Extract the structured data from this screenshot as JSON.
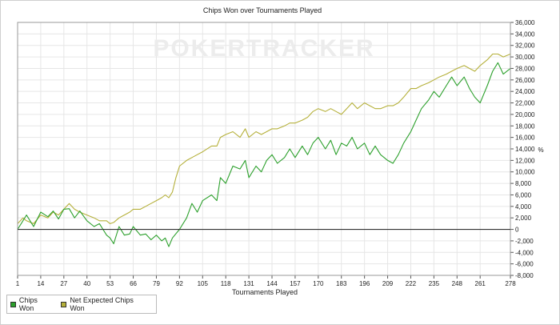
{
  "watermark": "POKERTRACKER",
  "colors": {
    "chips_won": "#2ca02c",
    "net_expected": "#b5b03a",
    "zero_line": "#333333"
  },
  "chart_data": {
    "type": "line",
    "title": "Chips Won over Tournaments Played",
    "xlabel": "Tournaments Played",
    "ylabel": "",
    "y_unit_label": "%",
    "xlim": [
      1,
      278
    ],
    "ylim": [
      -8000,
      36000
    ],
    "grid": true,
    "legend_placement": "bottom-left",
    "x_ticks": [
      1,
      14,
      27,
      40,
      53,
      66,
      79,
      92,
      105,
      118,
      131,
      144,
      157,
      170,
      183,
      196,
      209,
      222,
      235,
      248,
      261,
      278
    ],
    "y_ticks": [
      -8000,
      -6000,
      -4000,
      -2000,
      0,
      2000,
      4000,
      6000,
      8000,
      10000,
      12000,
      14000,
      16000,
      18000,
      20000,
      22000,
      24000,
      26000,
      28000,
      30000,
      32000,
      34000,
      36000
    ],
    "y_tick_labels": [
      "-8,000",
      "-6,000",
      "-4,000",
      "-2,000",
      "0",
      "2,000",
      "4,000",
      "6,000",
      "8,000",
      "10,000",
      "12,000",
      "14,000",
      "16,000",
      "18,000",
      "20,000",
      "22,000",
      "24,000",
      "26,000",
      "28,000",
      "30,000",
      "32,000",
      "34,000",
      "36,000"
    ],
    "series": [
      {
        "name": "Chips Won",
        "points": [
          [
            1,
            0
          ],
          [
            4,
            1500
          ],
          [
            6,
            2500
          ],
          [
            10,
            500
          ],
          [
            14,
            3000
          ],
          [
            18,
            2200
          ],
          [
            21,
            3200
          ],
          [
            24,
            1800
          ],
          [
            27,
            3500
          ],
          [
            30,
            3600
          ],
          [
            33,
            2000
          ],
          [
            36,
            3200
          ],
          [
            40,
            1500
          ],
          [
            44,
            500
          ],
          [
            47,
            1000
          ],
          [
            51,
            -1000
          ],
          [
            53,
            -1500
          ],
          [
            55,
            -2500
          ],
          [
            58,
            500
          ],
          [
            61,
            -1000
          ],
          [
            64,
            -800
          ],
          [
            66,
            500
          ],
          [
            70,
            -1000
          ],
          [
            73,
            -800
          ],
          [
            76,
            -1800
          ],
          [
            79,
            -1000
          ],
          [
            82,
            -2000
          ],
          [
            84,
            -1500
          ],
          [
            86,
            -3000
          ],
          [
            88,
            -1500
          ],
          [
            92,
            0
          ],
          [
            96,
            2000
          ],
          [
            99,
            4500
          ],
          [
            102,
            3000
          ],
          [
            105,
            5000
          ],
          [
            110,
            6000
          ],
          [
            113,
            5000
          ],
          [
            115,
            9000
          ],
          [
            118,
            8000
          ],
          [
            122,
            11000
          ],
          [
            126,
            10500
          ],
          [
            129,
            12000
          ],
          [
            131,
            9000
          ],
          [
            135,
            11000
          ],
          [
            138,
            10000
          ],
          [
            141,
            12000
          ],
          [
            144,
            13000
          ],
          [
            147,
            11500
          ],
          [
            151,
            12500
          ],
          [
            154,
            14000
          ],
          [
            157,
            12500
          ],
          [
            161,
            14500
          ],
          [
            164,
            13000
          ],
          [
            167,
            15000
          ],
          [
            170,
            16000
          ],
          [
            174,
            14000
          ],
          [
            177,
            15500
          ],
          [
            180,
            13000
          ],
          [
            183,
            15000
          ],
          [
            186,
            14500
          ],
          [
            189,
            16000
          ],
          [
            192,
            14000
          ],
          [
            196,
            15000
          ],
          [
            199,
            13000
          ],
          [
            202,
            14500
          ],
          [
            205,
            13000
          ],
          [
            209,
            12000
          ],
          [
            212,
            11500
          ],
          [
            215,
            13000
          ],
          [
            218,
            15000
          ],
          [
            222,
            17000
          ],
          [
            225,
            19000
          ],
          [
            228,
            21000
          ],
          [
            232,
            22500
          ],
          [
            235,
            24000
          ],
          [
            238,
            23000
          ],
          [
            242,
            25000
          ],
          [
            245,
            26500
          ],
          [
            248,
            25000
          ],
          [
            252,
            26500
          ],
          [
            255,
            24500
          ],
          [
            258,
            23000
          ],
          [
            261,
            22000
          ],
          [
            265,
            25000
          ],
          [
            268,
            27500
          ],
          [
            271,
            29000
          ],
          [
            274,
            27000
          ],
          [
            278,
            28000
          ]
        ]
      },
      {
        "name": "Net Expected Chips Won",
        "points": [
          [
            1,
            1000
          ],
          [
            4,
            2000
          ],
          [
            6,
            1500
          ],
          [
            10,
            1000
          ],
          [
            14,
            2500
          ],
          [
            18,
            2000
          ],
          [
            21,
            3000
          ],
          [
            24,
            2500
          ],
          [
            27,
            3500
          ],
          [
            30,
            4500
          ],
          [
            33,
            3500
          ],
          [
            36,
            3000
          ],
          [
            40,
            2500
          ],
          [
            44,
            2000
          ],
          [
            47,
            1500
          ],
          [
            51,
            1500
          ],
          [
            53,
            1000
          ],
          [
            55,
            1200
          ],
          [
            58,
            2000
          ],
          [
            61,
            2500
          ],
          [
            64,
            3000
          ],
          [
            66,
            3500
          ],
          [
            70,
            3500
          ],
          [
            73,
            4000
          ],
          [
            76,
            4500
          ],
          [
            79,
            5000
          ],
          [
            82,
            5500
          ],
          [
            84,
            6000
          ],
          [
            86,
            5500
          ],
          [
            88,
            6500
          ],
          [
            90,
            9000
          ],
          [
            92,
            11000
          ],
          [
            96,
            12000
          ],
          [
            99,
            12500
          ],
          [
            102,
            13000
          ],
          [
            105,
            13500
          ],
          [
            110,
            14500
          ],
          [
            113,
            14500
          ],
          [
            115,
            16000
          ],
          [
            118,
            16500
          ],
          [
            122,
            17000
          ],
          [
            126,
            16000
          ],
          [
            129,
            17500
          ],
          [
            131,
            16000
          ],
          [
            135,
            17000
          ],
          [
            138,
            16500
          ],
          [
            141,
            17000
          ],
          [
            144,
            17500
          ],
          [
            147,
            17500
          ],
          [
            151,
            18000
          ],
          [
            154,
            18500
          ],
          [
            157,
            18500
          ],
          [
            161,
            19000
          ],
          [
            164,
            19500
          ],
          [
            167,
            20500
          ],
          [
            170,
            21000
          ],
          [
            174,
            20500
          ],
          [
            177,
            21000
          ],
          [
            180,
            20500
          ],
          [
            183,
            20000
          ],
          [
            186,
            21000
          ],
          [
            189,
            22000
          ],
          [
            192,
            21000
          ],
          [
            196,
            22000
          ],
          [
            199,
            21500
          ],
          [
            202,
            21000
          ],
          [
            205,
            21000
          ],
          [
            209,
            21500
          ],
          [
            212,
            21500
          ],
          [
            215,
            22000
          ],
          [
            218,
            23000
          ],
          [
            222,
            24500
          ],
          [
            225,
            24500
          ],
          [
            228,
            25000
          ],
          [
            232,
            25500
          ],
          [
            235,
            26000
          ],
          [
            238,
            26500
          ],
          [
            242,
            27000
          ],
          [
            245,
            27500
          ],
          [
            248,
            28000
          ],
          [
            252,
            28500
          ],
          [
            255,
            28000
          ],
          [
            258,
            27500
          ],
          [
            261,
            28500
          ],
          [
            265,
            29500
          ],
          [
            268,
            30500
          ],
          [
            271,
            30500
          ],
          [
            274,
            30000
          ],
          [
            278,
            30500
          ]
        ]
      }
    ]
  }
}
